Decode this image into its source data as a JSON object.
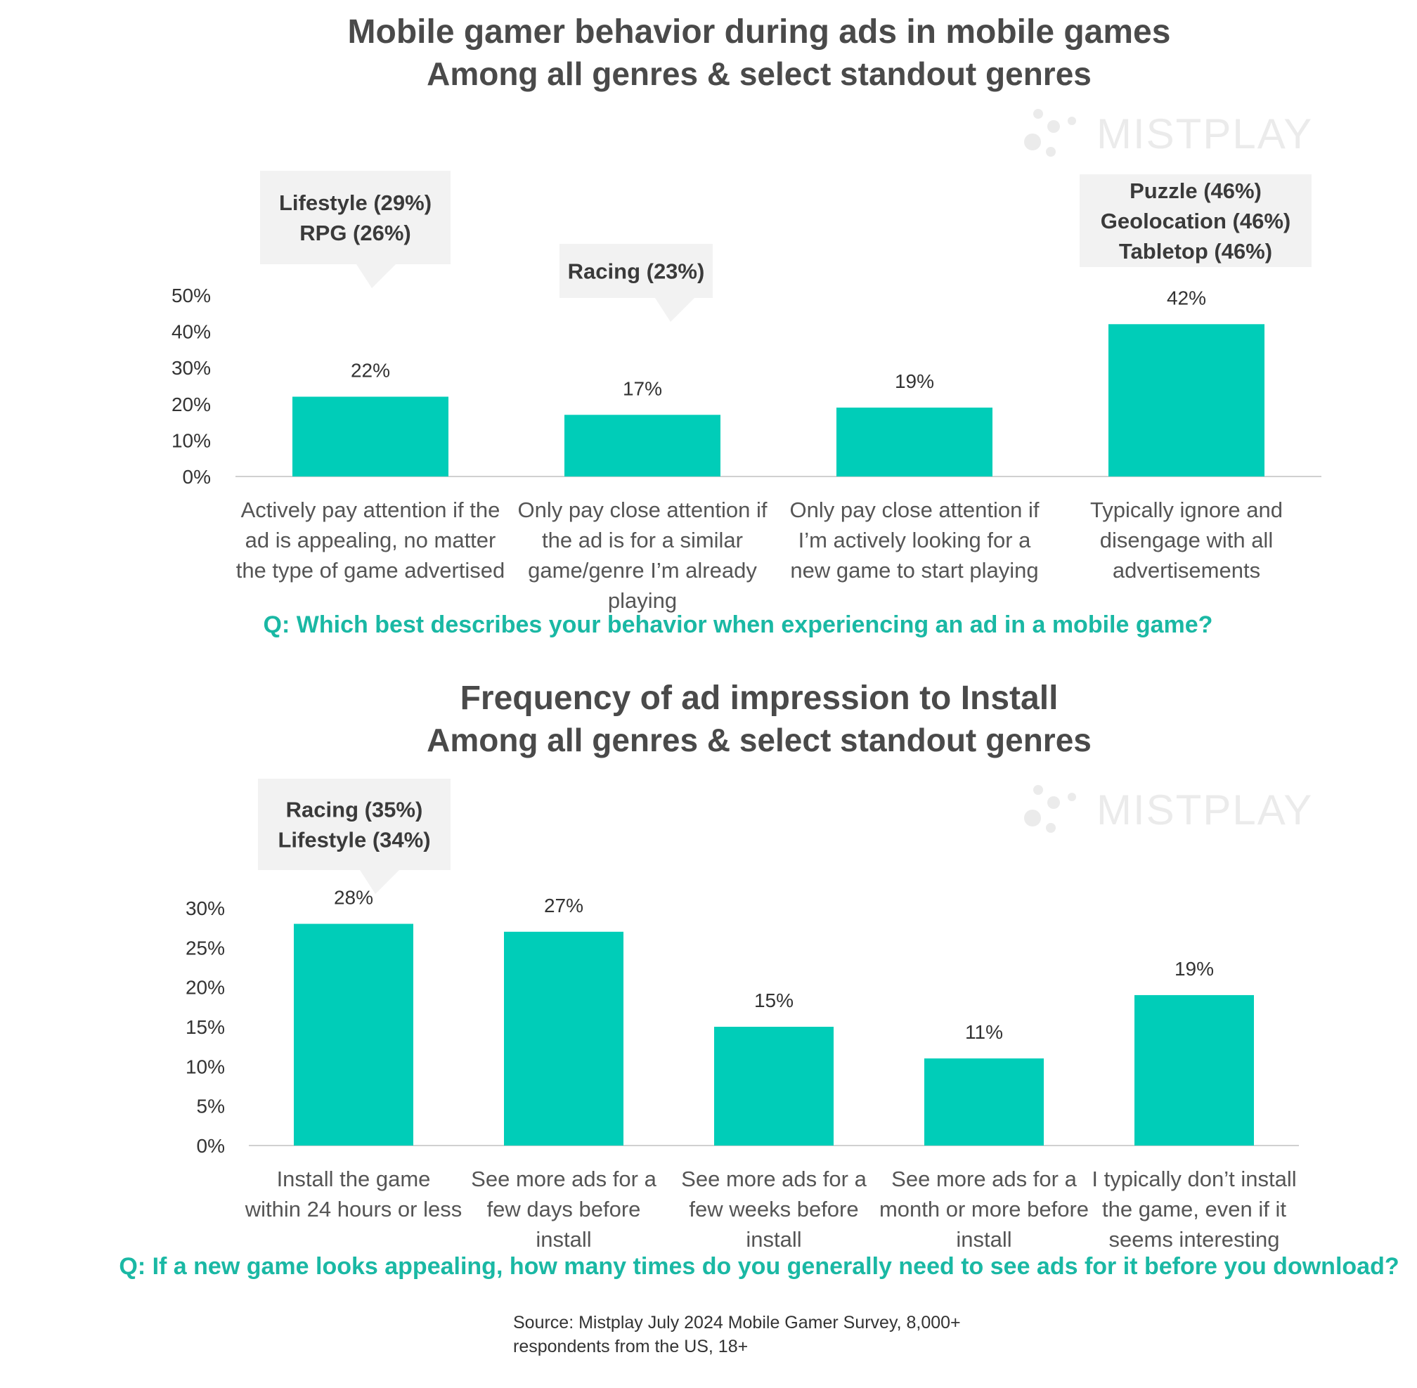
{
  "colors": {
    "bar": "#00cdb8",
    "accent": "#1ab8a4",
    "callout_bg": "#f2f2f2",
    "axis": "#d0d0d0",
    "watermark": "#ebebeb"
  },
  "watermark": {
    "text": "MISTPLAY",
    "icon": "dots-logo-icon"
  },
  "charts": [
    {
      "title": "Mobile gamer behavior during ads in mobile games",
      "subtitle": "Among all genres & select standout genres",
      "question": "Q: Which best describes your behavior when experiencing an ad in a mobile game?"
    },
    {
      "title": "Frequency of ad impression to Install",
      "subtitle": "Among all genres & select standout genres",
      "question": "Q: If a new game looks appealing, how many times do you generally need to see ads for it before you download?"
    }
  ],
  "chart_data": [
    {
      "type": "bar",
      "title": "Mobile gamer behavior during ads in mobile games",
      "subtitle": "Among all genres & select standout genres",
      "categories": [
        [
          "Actively pay attention if the",
          "ad is appealing, no matter",
          "the type of game advertised"
        ],
        [
          "Only pay close attention if",
          "the ad is for a similar",
          "game/genre I’m already",
          "playing"
        ],
        [
          "Only pay close attention if",
          "I’m actively looking for a",
          "new game to start playing"
        ],
        [
          "Typically ignore and",
          "disengage with all",
          "advertisements"
        ]
      ],
      "values": [
        22,
        17,
        19,
        42
      ],
      "value_labels": [
        "22%",
        "17%",
        "19%",
        "42%"
      ],
      "y_ticks": [
        "0%",
        "10%",
        "20%",
        "30%",
        "40%",
        "50%"
      ],
      "ylim": [
        0,
        50
      ],
      "grid": false,
      "annotations": [
        {
          "category_index": 0,
          "lines": [
            "Lifestyle (29%)",
            "RPG (26%)"
          ]
        },
        {
          "category_index": 1,
          "lines": [
            "Racing (23%)"
          ]
        },
        {
          "category_index": 3,
          "lines": [
            "Puzzle (46%)",
            "Geolocation (46%)",
            "Tabletop (46%)"
          ]
        }
      ]
    },
    {
      "type": "bar",
      "title": "Frequency of ad impression to Install",
      "subtitle": "Among all genres & select standout genres",
      "categories": [
        [
          "Install the game",
          "within 24 hours or less"
        ],
        [
          "See more ads for a",
          "few days before",
          "install"
        ],
        [
          "See more ads for a",
          "few weeks before",
          "install"
        ],
        [
          "See more ads for a",
          "month or more before",
          "install"
        ],
        [
          "I typically don’t install",
          "the game, even if it",
          "seems interesting"
        ]
      ],
      "values": [
        28,
        27,
        15,
        11,
        19
      ],
      "value_labels": [
        "28%",
        "27%",
        "15%",
        "11%",
        "19%"
      ],
      "y_ticks": [
        "0%",
        "5%",
        "10%",
        "15%",
        "20%",
        "25%",
        "30%"
      ],
      "ylim": [
        0,
        30
      ],
      "grid": false,
      "annotations": [
        {
          "category_index": 0,
          "lines": [
            "Racing (35%)",
            "Lifestyle (34%)"
          ]
        }
      ]
    }
  ],
  "source": {
    "lines": [
      "Source: Mistplay July 2024 Mobile Gamer Survey, 8,000+",
      "respondents from the US, 18+"
    ]
  }
}
